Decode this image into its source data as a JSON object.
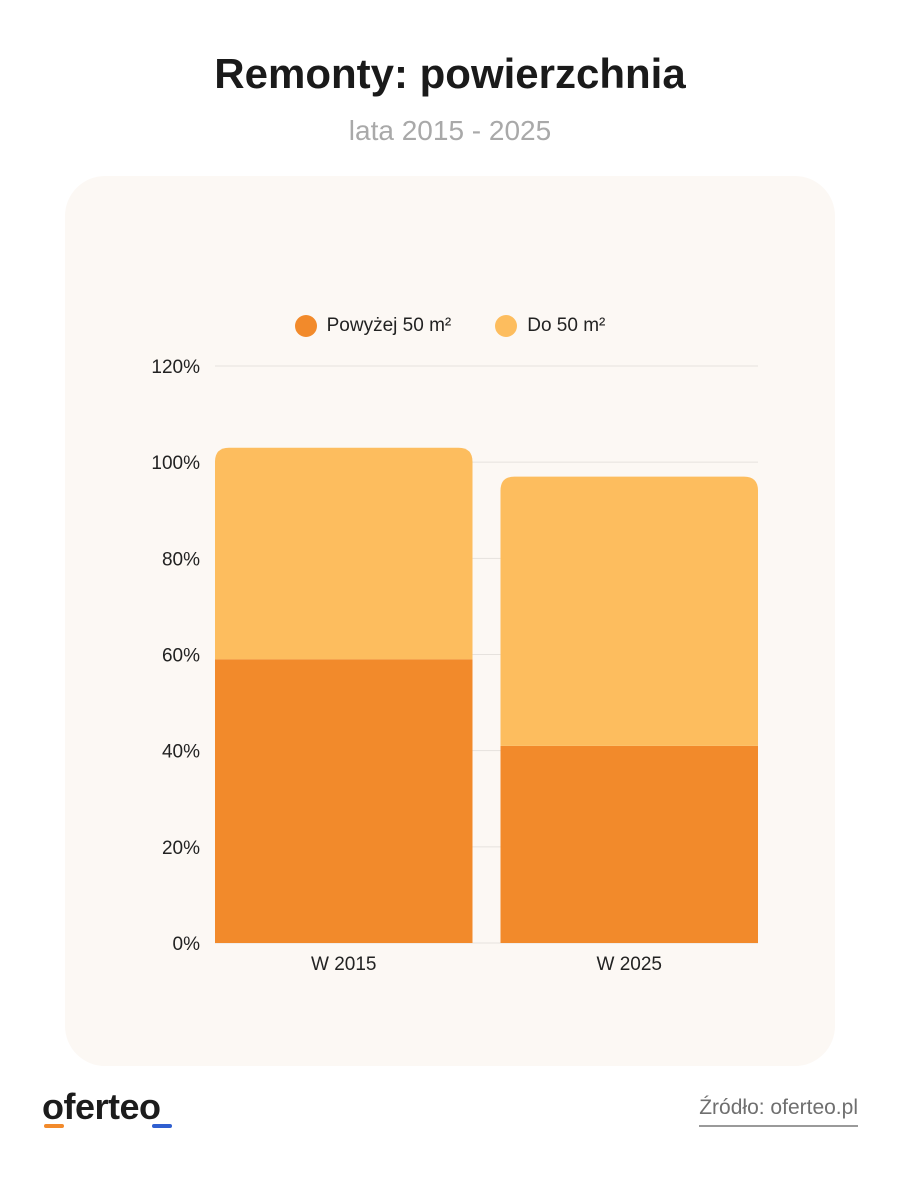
{
  "header": {
    "title": "Remonty: powierzchnia",
    "subtitle": "lata 2015 - 2025"
  },
  "footer": {
    "logo": "oferteo",
    "source": "Źródło: oferteo.pl"
  },
  "colors": {
    "series_above_50": "#f28a2b",
    "series_up_to_50": "#fdbd5e",
    "card_background": "#fcf8f4",
    "gridline": "#e6e2de"
  },
  "chart_data": {
    "type": "bar",
    "stacked": true,
    "categories": [
      "W 2015",
      "W 2025"
    ],
    "series": [
      {
        "name": "Powyżej 50 m²",
        "values": [
          59,
          41
        ]
      },
      {
        "name": "Do 50 m²",
        "values": [
          44,
          56
        ]
      }
    ],
    "y_ticks": [
      "0%",
      "20%",
      "40%",
      "60%",
      "80%",
      "100%",
      "120%"
    ],
    "ylim": [
      0,
      120
    ],
    "grid": true,
    "legend_position": "top-center"
  }
}
